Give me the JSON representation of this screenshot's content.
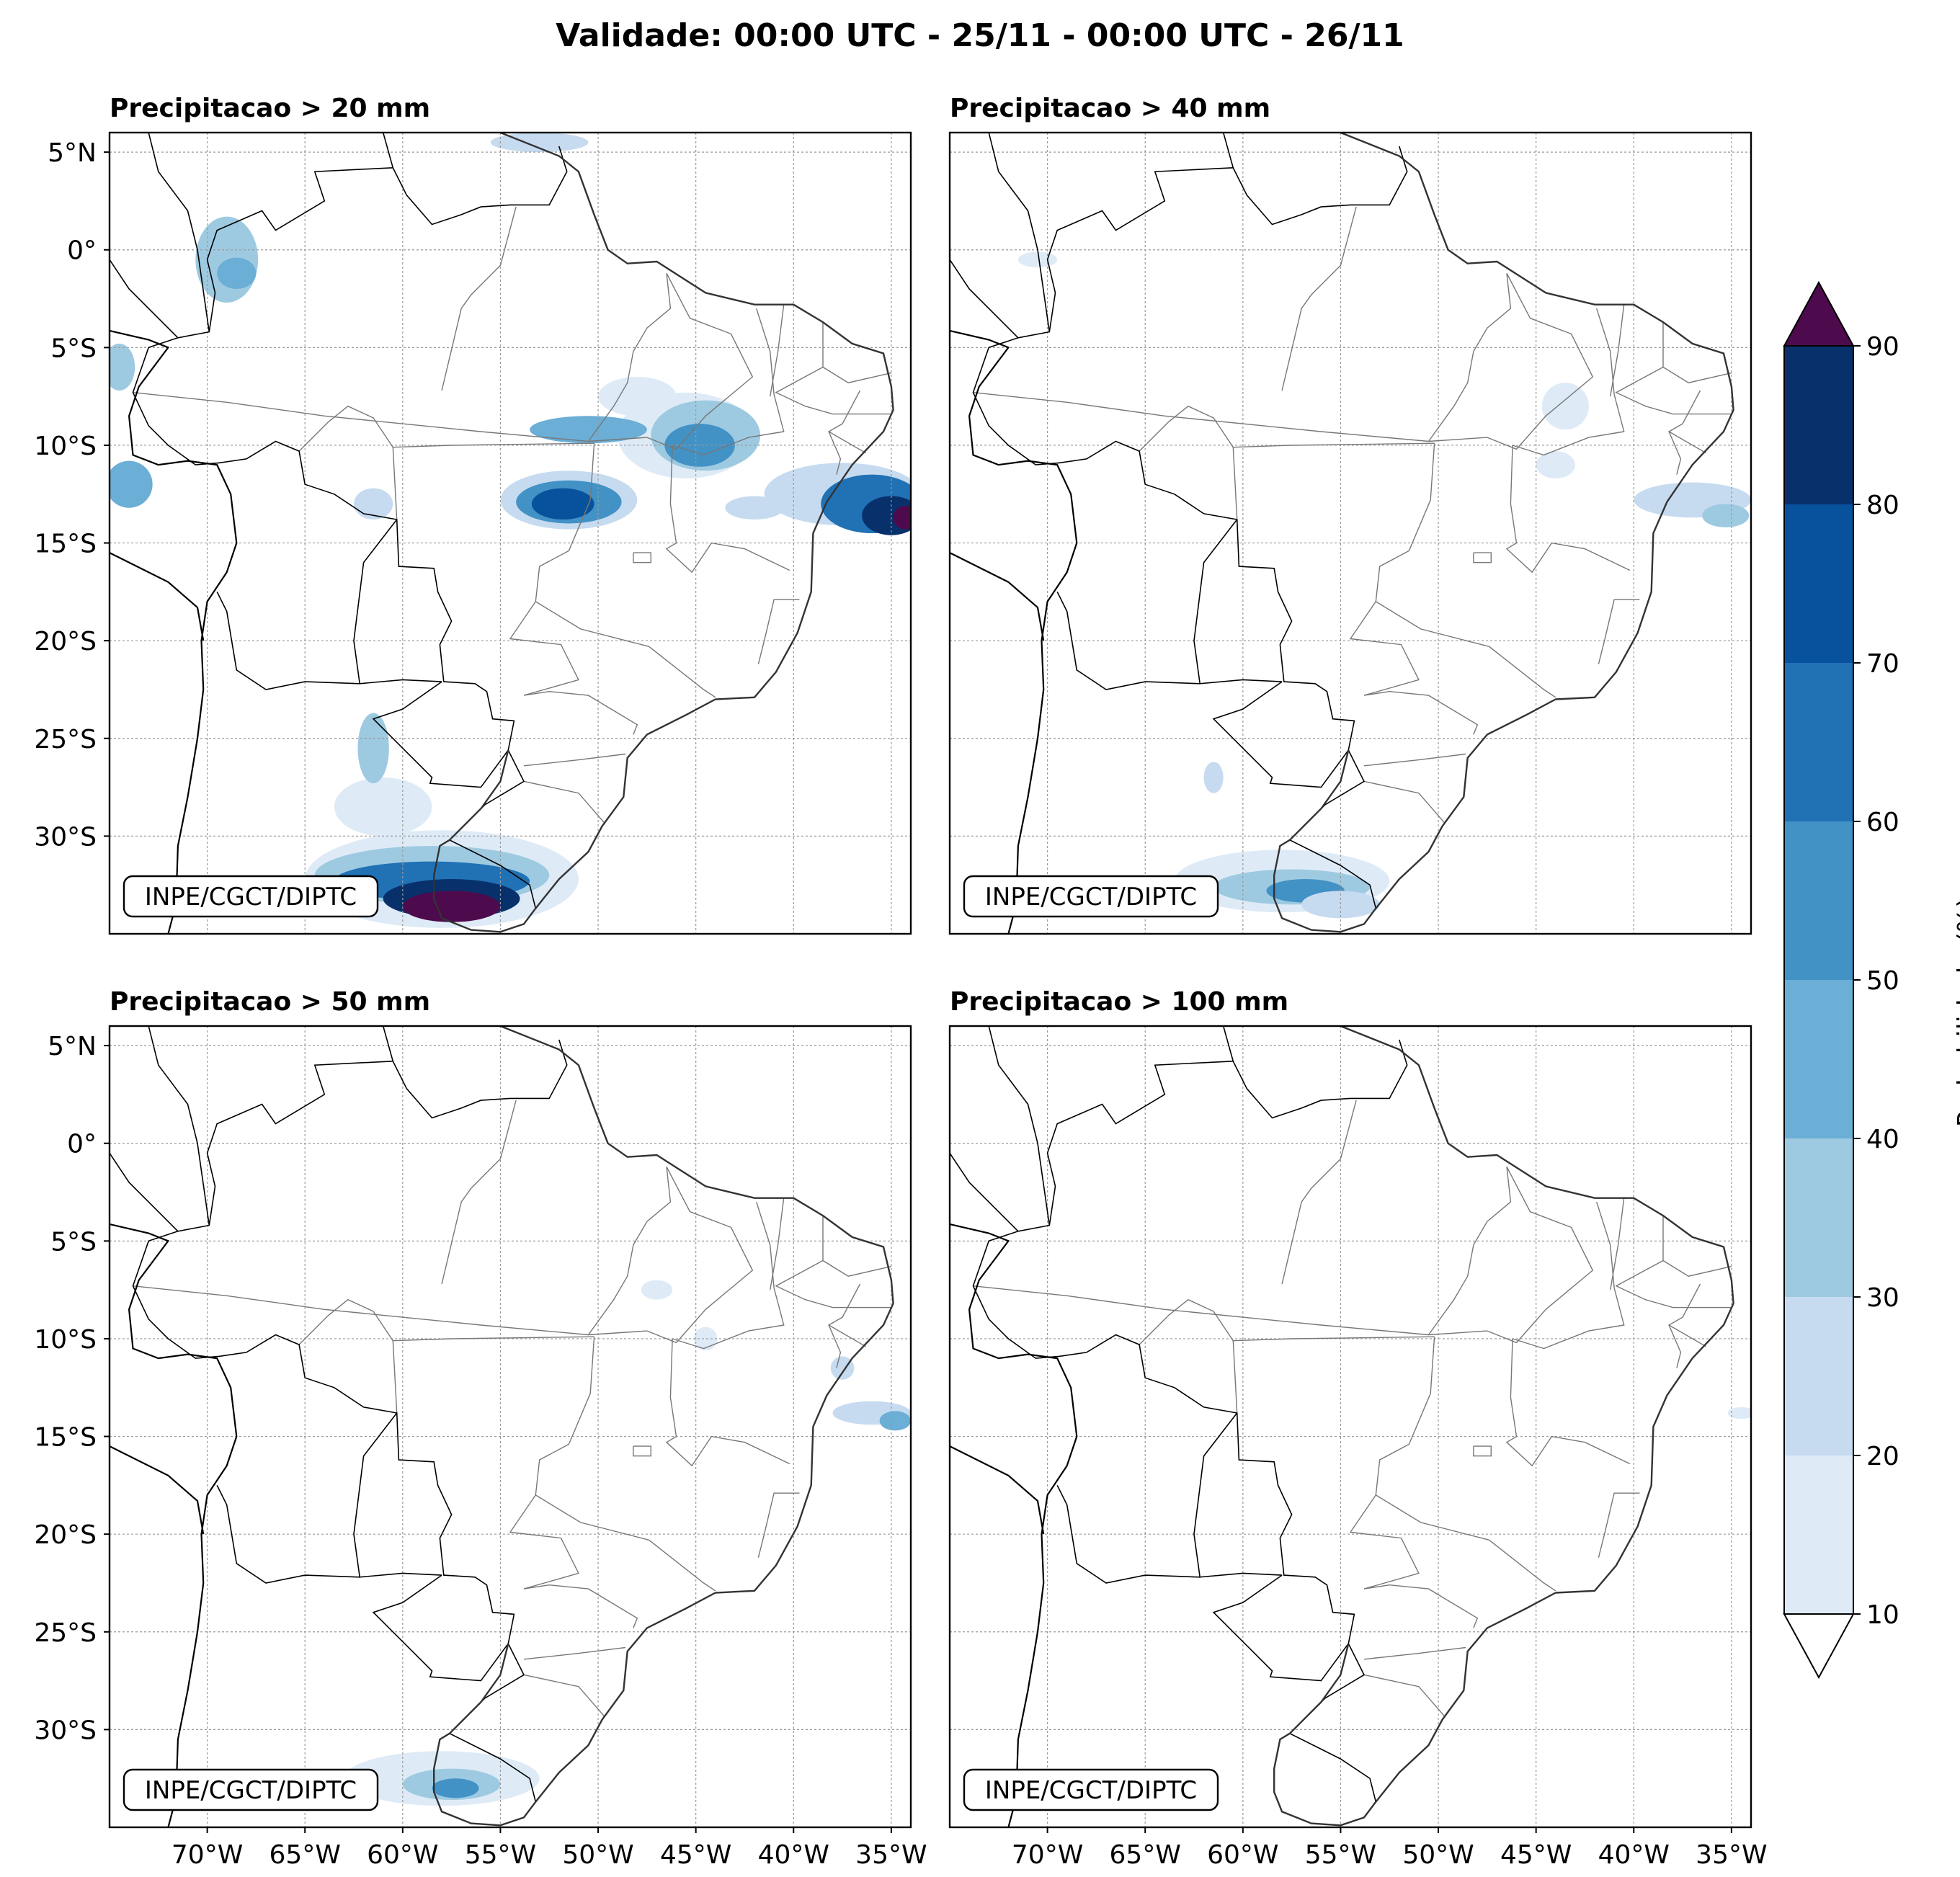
{
  "figure": {
    "title": "Validade: 00:00 UTC - 25/11 - 00:00 UTC - 26/11"
  },
  "map_extent": {
    "lon_min": -75,
    "lon_max": -34,
    "lat_min": -35,
    "lat_max": 6
  },
  "lat_ticks": [
    {
      "value": 5,
      "label": "5°N"
    },
    {
      "value": 0,
      "label": "0°"
    },
    {
      "value": -5,
      "label": "5°S"
    },
    {
      "value": -10,
      "label": "10°S"
    },
    {
      "value": -15,
      "label": "15°S"
    },
    {
      "value": -20,
      "label": "20°S"
    },
    {
      "value": -25,
      "label": "25°S"
    },
    {
      "value": -30,
      "label": "30°S"
    }
  ],
  "lon_ticks": [
    {
      "value": -70,
      "label": "70°W"
    },
    {
      "value": -65,
      "label": "65°W"
    },
    {
      "value": -60,
      "label": "60°W"
    },
    {
      "value": -55,
      "label": "55°W"
    },
    {
      "value": -50,
      "label": "50°W"
    },
    {
      "value": -45,
      "label": "45°W"
    },
    {
      "value": -40,
      "label": "40°W"
    },
    {
      "value": -35,
      "label": "35°W"
    }
  ],
  "panels": [
    {
      "title": "Precipitacao > 20 mm",
      "credit": "INPE/CGCT/DIPTC",
      "blobs": [
        {
          "lon": -45.5,
          "lat": -9.5,
          "rx": 3.5,
          "ry": 2.2,
          "level": 10
        },
        {
          "lon": -44.5,
          "lat": -9.5,
          "rx": 2.8,
          "ry": 1.8,
          "level": 30
        },
        {
          "lon": -44.8,
          "lat": -10.0,
          "rx": 1.8,
          "ry": 1.1,
          "level": 50
        },
        {
          "lon": -48.0,
          "lat": -7.5,
          "rx": 2.0,
          "ry": 1.0,
          "level": 10
        },
        {
          "lon": -51.5,
          "lat": -12.8,
          "rx": 3.5,
          "ry": 1.5,
          "level": 20
        },
        {
          "lon": -51.5,
          "lat": -12.9,
          "rx": 2.7,
          "ry": 1.1,
          "level": 50
        },
        {
          "lon": -51.8,
          "lat": -13.0,
          "rx": 1.6,
          "ry": 0.8,
          "level": 70
        },
        {
          "lon": -50.5,
          "lat": -9.2,
          "rx": 3.0,
          "ry": 0.7,
          "level": 40
        },
        {
          "lon": -37.5,
          "lat": -12.5,
          "rx": 4.0,
          "ry": 1.6,
          "level": 20
        },
        {
          "lon": -36.0,
          "lat": -13.0,
          "rx": 2.6,
          "ry": 1.5,
          "level": 60
        },
        {
          "lon": -35.0,
          "lat": -13.6,
          "rx": 1.5,
          "ry": 1.0,
          "level": 80
        },
        {
          "lon": -34.3,
          "lat": -13.7,
          "rx": 0.6,
          "ry": 0.6,
          "level": 90
        },
        {
          "lon": -42.0,
          "lat": -13.2,
          "rx": 1.5,
          "ry": 0.6,
          "level": 20
        },
        {
          "lon": -58.0,
          "lat": -32.2,
          "rx": 7.0,
          "ry": 2.5,
          "level": 10
        },
        {
          "lon": -58.5,
          "lat": -32.0,
          "rx": 6.0,
          "ry": 1.5,
          "level": 30
        },
        {
          "lon": -58.5,
          "lat": -32.3,
          "rx": 5.0,
          "ry": 1.0,
          "level": 60
        },
        {
          "lon": -57.5,
          "lat": -33.2,
          "rx": 3.5,
          "ry": 1.0,
          "level": 80
        },
        {
          "lon": -57.5,
          "lat": -33.6,
          "rx": 2.5,
          "ry": 0.8,
          "level": 90
        },
        {
          "lon": -61.0,
          "lat": -28.5,
          "rx": 2.5,
          "ry": 1.5,
          "level": 10
        },
        {
          "lon": -61.5,
          "lat": -25.5,
          "rx": 0.8,
          "ry": 1.8,
          "level": 30
        },
        {
          "lon": -69.0,
          "lat": -0.5,
          "rx": 1.6,
          "ry": 2.2,
          "level": 30
        },
        {
          "lon": -68.5,
          "lat": -1.2,
          "rx": 1.0,
          "ry": 0.8,
          "level": 40
        },
        {
          "lon": -74.0,
          "lat": -12.0,
          "rx": 1.2,
          "ry": 1.2,
          "level": 40
        },
        {
          "lon": -74.5,
          "lat": -6.0,
          "rx": 0.8,
          "ry": 1.2,
          "level": 30
        },
        {
          "lon": -61.5,
          "lat": -13.0,
          "rx": 1.0,
          "ry": 0.8,
          "level": 20
        },
        {
          "lon": -53.0,
          "lat": 5.5,
          "rx": 2.5,
          "ry": 0.5,
          "level": 20
        }
      ]
    },
    {
      "title": "Precipitacao > 40 mm",
      "credit": "INPE/CGCT/DIPTC",
      "blobs": [
        {
          "lon": -58.0,
          "lat": -32.3,
          "rx": 5.5,
          "ry": 1.6,
          "level": 10
        },
        {
          "lon": -57.5,
          "lat": -32.6,
          "rx": 4.0,
          "ry": 0.9,
          "level": 30
        },
        {
          "lon": -56.8,
          "lat": -32.8,
          "rx": 2.0,
          "ry": 0.6,
          "level": 50
        },
        {
          "lon": -55.0,
          "lat": -33.5,
          "rx": 2.0,
          "ry": 0.7,
          "level": 20
        },
        {
          "lon": -37.0,
          "lat": -12.8,
          "rx": 3.0,
          "ry": 0.9,
          "level": 20
        },
        {
          "lon": -35.3,
          "lat": -13.6,
          "rx": 1.2,
          "ry": 0.6,
          "level": 30
        },
        {
          "lon": -43.5,
          "lat": -8.0,
          "rx": 1.2,
          "ry": 1.2,
          "level": 10
        },
        {
          "lon": -44.0,
          "lat": -11.0,
          "rx": 1.0,
          "ry": 0.7,
          "level": 10
        },
        {
          "lon": -61.5,
          "lat": -27.0,
          "rx": 0.5,
          "ry": 0.8,
          "level": 20
        },
        {
          "lon": -70.5,
          "lat": -0.5,
          "rx": 1.0,
          "ry": 0.4,
          "level": 10
        }
      ]
    },
    {
      "title": "Precipitacao > 50 mm",
      "credit": "INPE/CGCT/DIPTC",
      "blobs": [
        {
          "lon": -58.0,
          "lat": -32.5,
          "rx": 5.0,
          "ry": 1.4,
          "level": 10
        },
        {
          "lon": -57.5,
          "lat": -32.8,
          "rx": 2.5,
          "ry": 0.8,
          "level": 30
        },
        {
          "lon": -57.3,
          "lat": -33.0,
          "rx": 1.2,
          "ry": 0.5,
          "level": 50
        },
        {
          "lon": -36.0,
          "lat": -13.8,
          "rx": 2.0,
          "ry": 0.6,
          "level": 20
        },
        {
          "lon": -34.8,
          "lat": -14.2,
          "rx": 0.8,
          "ry": 0.5,
          "level": 40
        },
        {
          "lon": -37.5,
          "lat": -11.5,
          "rx": 0.6,
          "ry": 0.6,
          "level": 20
        },
        {
          "lon": -44.5,
          "lat": -10.0,
          "rx": 0.6,
          "ry": 0.6,
          "level": 10
        },
        {
          "lon": -47.0,
          "lat": -7.5,
          "rx": 0.8,
          "ry": 0.5,
          "level": 10
        }
      ]
    },
    {
      "title": "Precipitacao > 100 mm",
      "credit": "INPE/CGCT/DIPTC",
      "blobs": [
        {
          "lon": -34.5,
          "lat": -13.8,
          "rx": 0.7,
          "ry": 0.3,
          "level": 10
        }
      ]
    }
  ],
  "colorbar": {
    "label": "Probabilidade (%)",
    "levels": [
      10,
      20,
      30,
      40,
      50,
      60,
      70,
      80,
      90
    ],
    "tick_labels": [
      "10",
      "20",
      "30",
      "40",
      "50",
      "60",
      "70",
      "80",
      "90"
    ],
    "colors": [
      "#deebf7",
      "#c6dbef",
      "#9ecae1",
      "#6baed6",
      "#4292c6",
      "#2171b5",
      "#08519c",
      "#08306b"
    ],
    "over_color": "#4d0a4d",
    "under_color": "#ffffff"
  },
  "colors": {
    "coastline": "#000000",
    "state_borders": "#777777",
    "gridlines": "#999999"
  }
}
